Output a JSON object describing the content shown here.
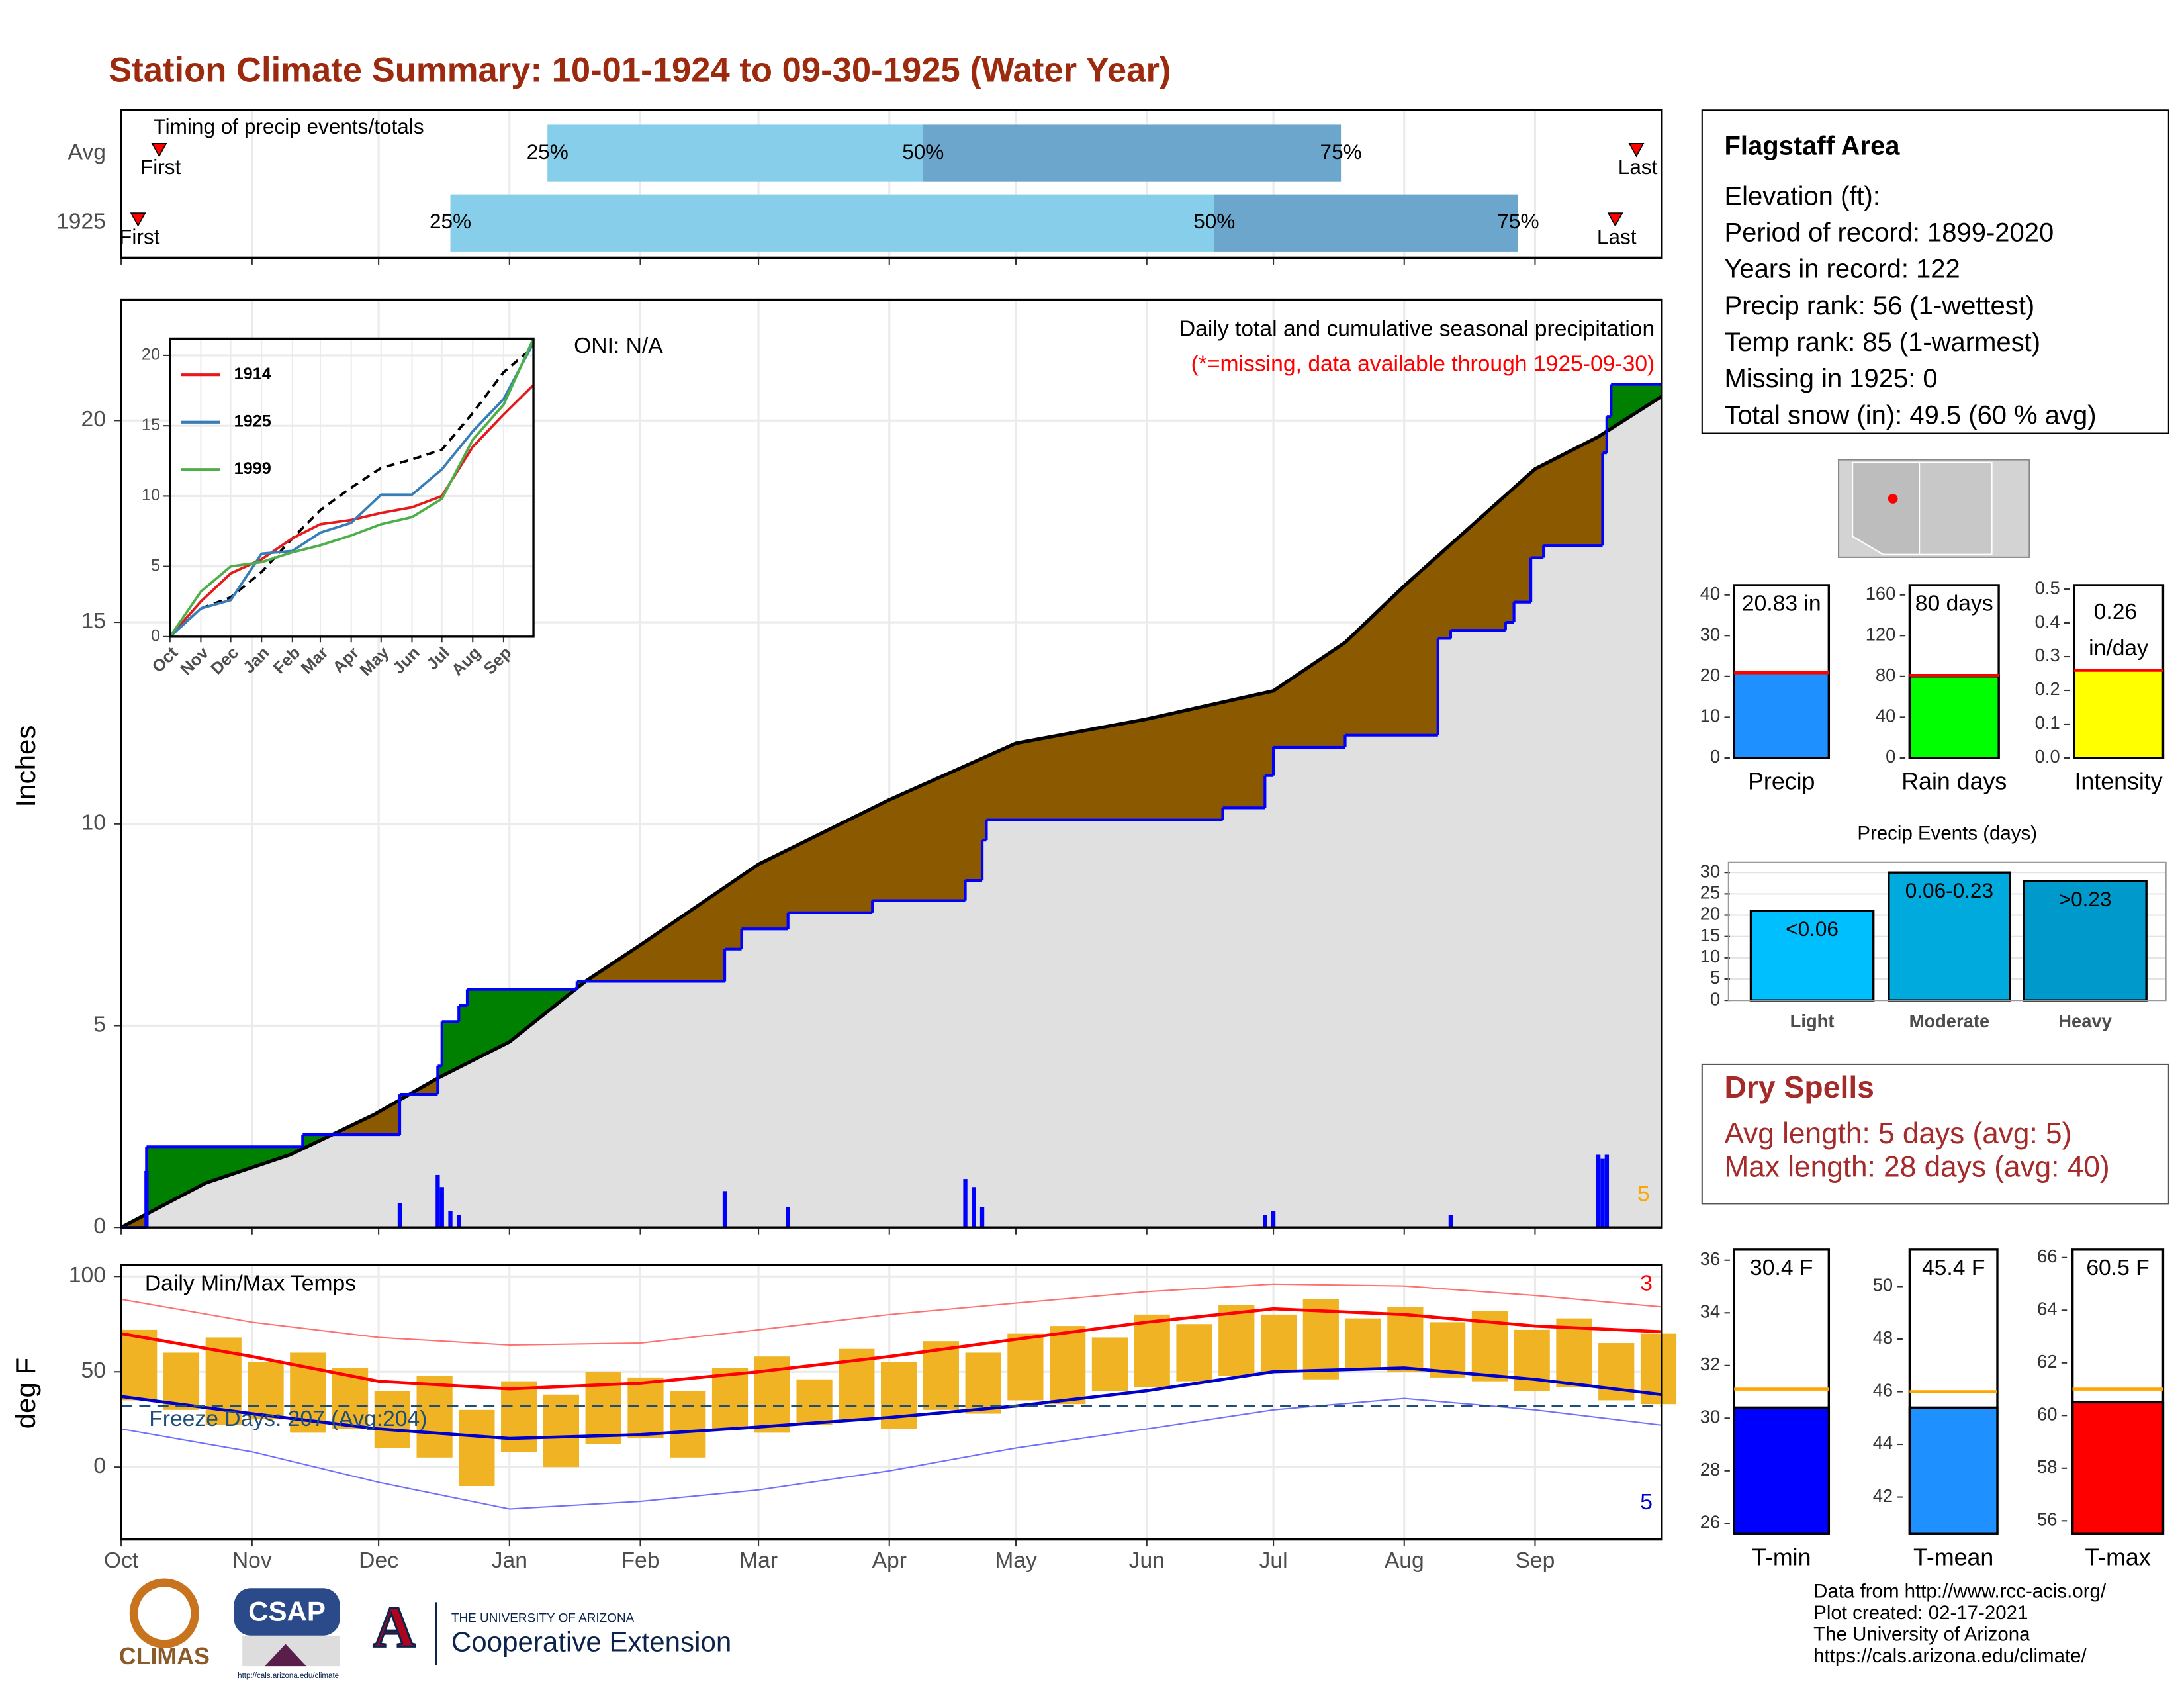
{
  "title": "Station Climate Summary: 10-01-1924 to 09-30-1925 (Water Year)",
  "chart_data": [
    {
      "type": "timeline",
      "title": "Timing of precip events/totals",
      "xlim": [
        0,
        365
      ],
      "rows": [
        {
          "name": "Avg",
          "first": 9,
          "q25": 101,
          "q50": 190,
          "q75": 289,
          "last": 359
        },
        {
          "name": "1925",
          "first": 4,
          "q25": 78,
          "q50": 259,
          "q75": 331,
          "last": 354
        }
      ],
      "labels": {
        "first": "First",
        "last": "Last",
        "q25": "25%",
        "q50": "50%",
        "q75": "75%"
      },
      "colors": [
        "#87ceeb",
        "#6ca6cd"
      ]
    },
    {
      "type": "area",
      "ylabel": "Inches",
      "annotation": "Daily total and cumulative seasonal precipitation",
      "note": "(*=missing, data available through 1925-09-30)",
      "oni": "ONI: N/A",
      "count": 5,
      "xlim": [
        0,
        365
      ],
      "ylim": [
        0,
        23
      ],
      "yticks": [
        0,
        5,
        10,
        15,
        20
      ],
      "grid": true,
      "fill_color": "#e0e0e0",
      "above_color": "#008000",
      "below_color": "#8b5a00",
      "average": {
        "color": "#000000",
        "x": [
          0,
          20,
          40,
          60,
          75,
          92,
          110,
          123,
          151,
          182,
          212,
          243,
          273,
          290,
          304,
          335,
          350,
          365
        ],
        "values": [
          0,
          1.1,
          1.8,
          2.8,
          3.7,
          4.6,
          6.1,
          7.0,
          9.0,
          10.6,
          12.0,
          12.6,
          13.3,
          14.5,
          15.9,
          18.8,
          19.6,
          20.6
        ]
      },
      "cumulative": {
        "color": "#0000ff",
        "x": [
          0,
          6,
          43,
          66,
          75,
          76,
          80,
          82,
          108,
          143,
          147,
          158,
          178,
          200,
          204,
          205,
          261,
          271,
          273,
          290,
          312,
          315,
          328,
          330,
          334,
          337,
          351,
          352,
          353
        ],
        "values": [
          0,
          2.0,
          2.3,
          3.3,
          4.0,
          5.1,
          5.5,
          5.9,
          6.1,
          6.9,
          7.4,
          7.8,
          8.1,
          8.6,
          9.6,
          10.1,
          10.4,
          11.2,
          11.9,
          12.2,
          14.6,
          14.8,
          15.0,
          15.5,
          16.6,
          16.9,
          19.2,
          20.1,
          20.9
        ]
      },
      "daily": {
        "color": "#0000ff",
        "x": [
          6,
          66,
          75,
          76,
          78,
          80,
          143,
          158,
          200,
          202,
          204,
          271,
          273,
          315,
          350,
          351,
          352
        ],
        "values": [
          1.4,
          0.6,
          1.3,
          1.0,
          0.4,
          0.3,
          0.9,
          0.5,
          1.2,
          1.0,
          0.5,
          0.3,
          0.4,
          0.3,
          1.8,
          1.7,
          1.8
        ]
      }
    },
    {
      "type": "line",
      "xlim": [
        0,
        365
      ],
      "ylim": [
        0,
        21.2
      ],
      "yticks": [
        0,
        5,
        10,
        15,
        20
      ],
      "xticks": [
        {
          "value": 0,
          "label": "Oct"
        },
        {
          "value": 31,
          "label": "Nov"
        },
        {
          "value": 61,
          "label": "Dec"
        },
        {
          "value": 92,
          "label": "Jan"
        },
        {
          "value": 123,
          "label": "Feb"
        },
        {
          "value": 151,
          "label": "Mar"
        },
        {
          "value": 182,
          "label": "Apr"
        },
        {
          "value": 212,
          "label": "May"
        },
        {
          "value": 243,
          "label": "Jun"
        },
        {
          "value": 273,
          "label": "Jul"
        },
        {
          "value": 304,
          "label": "Aug"
        },
        {
          "value": 335,
          "label": "Sep"
        }
      ],
      "x": [
        0,
        31,
        61,
        92,
        123,
        151,
        182,
        212,
        243,
        273,
        304,
        335,
        365
      ],
      "series": [
        {
          "name": "1914",
          "color": "#e41a1c",
          "values": [
            0,
            2.5,
            4.5,
            5.5,
            7.0,
            8.0,
            8.3,
            8.8,
            9.2,
            10.0,
            13.5,
            15.8,
            17.9
          ]
        },
        {
          "name": "1925",
          "color": "#377eb8",
          "values": [
            0,
            2.0,
            2.6,
            5.9,
            6.1,
            7.4,
            8.1,
            10.1,
            10.1,
            11.9,
            14.6,
            16.9,
            20.9
          ]
        },
        {
          "name": "1999",
          "color": "#4daf4a",
          "values": [
            0,
            3.2,
            5.0,
            5.3,
            6.0,
            6.5,
            7.2,
            8.0,
            8.5,
            9.8,
            14.0,
            16.5,
            21.2
          ]
        }
      ],
      "average": {
        "color": "#000000",
        "values": [
          0,
          2.0,
          2.8,
          4.6,
          7.0,
          9.0,
          10.6,
          12.0,
          12.6,
          13.3,
          15.9,
          18.8,
          20.6
        ]
      }
    },
    {
      "type": "range",
      "title": "Daily Min/Max Temps",
      "ylabel": "deg F",
      "xlim": [
        0,
        365
      ],
      "ylim": [
        -38,
        106
      ],
      "yticks": [
        0,
        50,
        100
      ],
      "xticks": [
        {
          "value": 0,
          "label": "Oct"
        },
        {
          "value": 31,
          "label": "Nov"
        },
        {
          "value": 61,
          "label": "Dec"
        },
        {
          "value": 92,
          "label": "Jan"
        },
        {
          "value": 123,
          "label": "Feb"
        },
        {
          "value": 151,
          "label": "Mar"
        },
        {
          "value": 182,
          "label": "Apr"
        },
        {
          "value": 212,
          "label": "May"
        },
        {
          "value": 243,
          "label": "Jun"
        },
        {
          "value": 273,
          "label": "Jul"
        },
        {
          "value": 304,
          "label": "Aug"
        },
        {
          "value": 335,
          "label": "Sep"
        }
      ],
      "freeze_line": 32,
      "freeze_label": "Freeze Days: 207 (Avg:204)",
      "record_high_count": 3,
      "record_low_count": 5,
      "daily": {
        "color": "#f0b323",
        "x": [
          0,
          10,
          20,
          30,
          40,
          50,
          60,
          70,
          80,
          90,
          100,
          110,
          120,
          130,
          140,
          150,
          160,
          170,
          180,
          190,
          200,
          210,
          220,
          230,
          240,
          250,
          260,
          270,
          280,
          290,
          300,
          310,
          320,
          330,
          340,
          350,
          360
        ],
        "max": [
          72,
          60,
          68,
          55,
          60,
          52,
          40,
          48,
          30,
          45,
          38,
          50,
          47,
          40,
          52,
          58,
          46,
          62,
          55,
          66,
          60,
          70,
          74,
          68,
          80,
          75,
          85,
          80,
          88,
          78,
          84,
          76,
          82,
          72,
          78,
          65,
          70
        ],
        "min": [
          35,
          30,
          22,
          25,
          18,
          20,
          10,
          5,
          -10,
          8,
          0,
          12,
          15,
          5,
          20,
          18,
          22,
          25,
          20,
          30,
          28,
          35,
          33,
          40,
          42,
          45,
          48,
          50,
          46,
          52,
          50,
          47,
          45,
          40,
          42,
          35,
          33
        ]
      },
      "line_x": [
        0,
        31,
        61,
        92,
        123,
        151,
        182,
        212,
        243,
        273,
        304,
        335,
        365
      ],
      "average_max": {
        "color": "#ff0000",
        "values": [
          70,
          58,
          45,
          41,
          44,
          50,
          58,
          67,
          76,
          83,
          80,
          74,
          71
        ]
      },
      "average_min": {
        "color": "#0000cd",
        "values": [
          37,
          28,
          20,
          15,
          17,
          21,
          26,
          32,
          40,
          50,
          52,
          46,
          38
        ]
      },
      "record_max": {
        "color": "#ff7070",
        "values": [
          88,
          76,
          68,
          64,
          65,
          72,
          80,
          86,
          92,
          96,
          95,
          90,
          84
        ]
      },
      "record_min": {
        "color": "#7070ff",
        "values": [
          20,
          8,
          -8,
          -22,
          -18,
          -12,
          -2,
          10,
          20,
          30,
          36,
          30,
          22
        ]
      }
    },
    {
      "type": "bar",
      "frame": true,
      "categories": [
        "Precip"
      ],
      "values": [
        20.83
      ],
      "value_labels": [
        "20.83 in"
      ],
      "average": 20.9,
      "ylim": [
        0,
        42.4
      ],
      "yticks": [
        0,
        10,
        20,
        30,
        40
      ],
      "color": "#1e90ff",
      "average_color": "#ff0000"
    },
    {
      "type": "bar",
      "frame": true,
      "categories": [
        "Rain days"
      ],
      "values": [
        80
      ],
      "value_labels": [
        "80 days"
      ],
      "average": 81,
      "ylim": [
        0,
        169.6
      ],
      "yticks": [
        0,
        40,
        80,
        120,
        160
      ],
      "color": "#00ff00",
      "average_color": "#ff0000"
    },
    {
      "type": "bar",
      "frame": true,
      "categories": [
        "Intensity"
      ],
      "values": [
        0.26
      ],
      "value_labels": [
        "0.26 in/day"
      ],
      "average": 0.26,
      "ylim": [
        0,
        0.512
      ],
      "yticks": [
        {
          "value": 0,
          "label": "0.0"
        },
        0.1,
        0.2,
        0.3,
        0.4,
        0.5
      ],
      "color": "#ffff00",
      "average_color": "#ff0000"
    },
    {
      "type": "bar",
      "title": "Precip Events (days)",
      "grid": true,
      "categories": [
        "Light",
        "Moderate",
        "Heavy"
      ],
      "values": [
        21,
        30,
        28
      ],
      "range_labels": [
        "<0.06",
        "0.06-0.23",
        ">0.23"
      ],
      "colors": [
        "#00bfff",
        "#00aadd",
        "#0099cc"
      ],
      "ylim": [
        0,
        32.4
      ],
      "yticks": [
        0,
        5,
        10,
        15,
        20,
        25,
        30
      ]
    },
    {
      "type": "bar",
      "frame": true,
      "categories": [
        "T-min"
      ],
      "values": [
        30.4
      ],
      "value_labels": [
        "30.4 F"
      ],
      "average": 31.1,
      "ylim": [
        25.6,
        36.4
      ],
      "yticks": [
        26,
        28,
        30,
        32,
        34,
        36
      ],
      "color": "#0000ff",
      "average_color": "#ffa500"
    },
    {
      "type": "bar",
      "frame": true,
      "categories": [
        "T-mean"
      ],
      "values": [
        45.4
      ],
      "value_labels": [
        "45.4 F"
      ],
      "average": 46.0,
      "ylim": [
        40.6,
        51.4
      ],
      "yticks": [
        42,
        44,
        46,
        48,
        50
      ],
      "color": "#1e90ff",
      "average_color": "#ffa500"
    },
    {
      "type": "bar",
      "frame": true,
      "categories": [
        "T-max"
      ],
      "values": [
        60.5
      ],
      "value_labels": [
        "60.5 F"
      ],
      "average": 61.0,
      "ylim": [
        55.5,
        66.3
      ],
      "yticks": [
        56,
        58,
        60,
        62,
        64,
        66
      ],
      "color": "#ff0000",
      "average_color": "#ffa500"
    }
  ],
  "station_info": {
    "name": "Flagstaff Area",
    "lines": [
      "Elevation (ft):",
      "Period of record: 1899-2020",
      "Years in record: 122",
      "Precip rank: 56 (1-wettest)",
      "Temp rank: 85 (1-warmest)",
      "Missing in 1925: 0",
      "Total snow (in): 49.5 (60 % avg)"
    ]
  },
  "dry_spells": {
    "title": "Dry Spells",
    "lines": [
      "Avg length: 5 days (avg: 5)",
      "Max length: 28 days (avg: 40)"
    ]
  },
  "footer": {
    "logos": [
      "CLIMAS",
      "CSAP",
      "http://cals.arizona.edu/climate",
      "A",
      "THE UNIVERSITY OF ARIZONA",
      "Cooperative Extension"
    ],
    "source": [
      "Data from http://www.rcc-acis.org/",
      "Plot created: 02-17-2021",
      "The University of Arizona",
      "https://cals.arizona.edu/climate/"
    ]
  }
}
